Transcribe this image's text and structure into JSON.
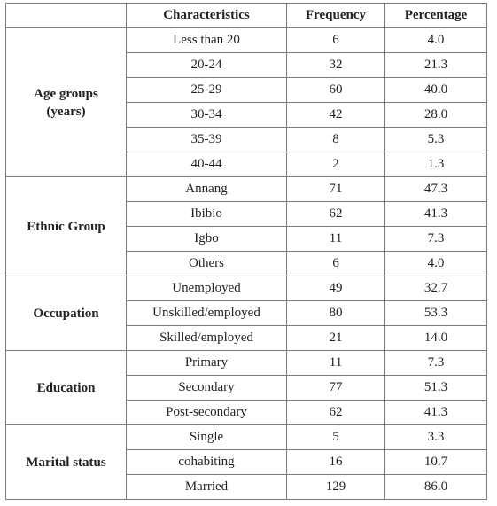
{
  "headers": [
    "",
    "Characteristics",
    "Frequency",
    "Percentage"
  ],
  "groups": [
    {
      "label": "Age groups (years)",
      "rows": [
        [
          "Less than 20",
          "6",
          "4.0"
        ],
        [
          "20-24",
          "32",
          "21.3"
        ],
        [
          "25-29",
          "60",
          "40.0"
        ],
        [
          "30-34",
          "42",
          "28.0"
        ],
        [
          "35-39",
          "8",
          "5.3"
        ],
        [
          "40-44",
          "2",
          "1.3"
        ]
      ]
    },
    {
      "label": "Ethnic Group",
      "rows": [
        [
          "Annang",
          "71",
          "47.3"
        ],
        [
          "Ibibio",
          "62",
          "41.3"
        ],
        [
          "Igbo",
          "11",
          "7.3"
        ],
        [
          "Others",
          "6",
          "4.0"
        ]
      ]
    },
    {
      "label": "Occupation",
      "rows": [
        [
          "Unemployed",
          "49",
          "32.7"
        ],
        [
          "Unskilled/employed",
          "80",
          "53.3"
        ],
        [
          "Skilled/employed",
          "21",
          "14.0"
        ]
      ]
    },
    {
      "label": "Education",
      "rows": [
        [
          "Primary",
          "11",
          "7.3"
        ],
        [
          "Secondary",
          "77",
          "51.3"
        ],
        [
          "Post-secondary",
          "62",
          "41.3"
        ]
      ]
    },
    {
      "label": "Marital status",
      "rows": [
        [
          "Single",
          "5",
          "3.3"
        ],
        [
          "cohabiting",
          "16",
          "10.7"
        ],
        [
          "Married",
          "129",
          "86.0"
        ]
      ]
    }
  ]
}
